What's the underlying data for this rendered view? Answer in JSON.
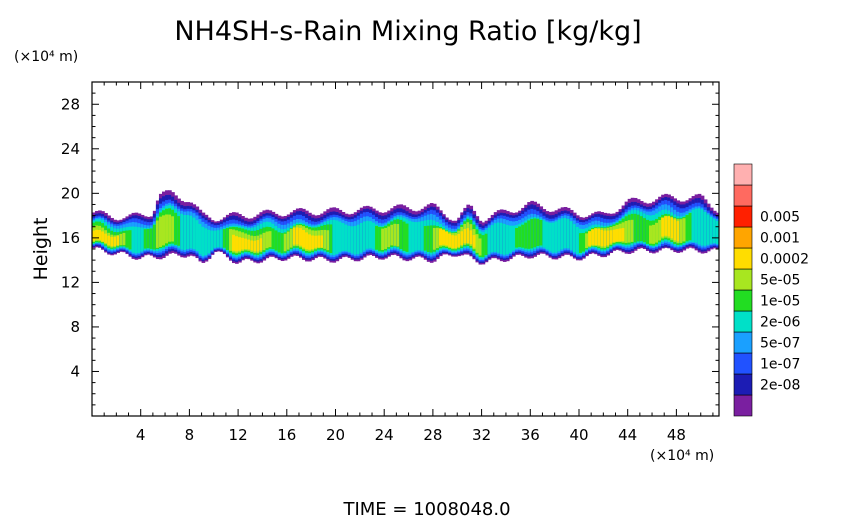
{
  "chart_data": {
    "type": "heatmap",
    "title": "NH4SH-s-Rain Mixing Ratio [kg/kg]",
    "ylabel": "Height",
    "y_unit": "(×10⁴ m)",
    "x_unit": "(×10⁴ m)",
    "xlim": [
      0,
      51.5
    ],
    "ylim": [
      0,
      30
    ],
    "x_ticks": [
      4,
      8,
      12,
      16,
      20,
      24,
      28,
      32,
      36,
      40,
      44,
      48
    ],
    "x_tick_labels": [
      "4",
      "8",
      "12",
      "16",
      "20",
      "24",
      "28",
      "32",
      "36",
      "40",
      "44",
      "48"
    ],
    "y_ticks": [
      4,
      8,
      12,
      16,
      20,
      24,
      28
    ],
    "y_tick_labels": [
      "4",
      "8",
      "12",
      "16",
      "20",
      "24",
      "28"
    ],
    "colorbar": {
      "levels": [
        "2e-08",
        "1e-07",
        "5e-07",
        "2e-06",
        "1e-05",
        "5e-05",
        "0.0002",
        "0.001",
        "0.005"
      ],
      "colors": [
        "#7a1fa0",
        "#1c1cb4",
        "#2152ff",
        "#1aa0ff",
        "#00e0c8",
        "#22dd22",
        "#a8e620",
        "#ffdd00",
        "#ffa500",
        "#ff2000",
        "#ff6a60",
        "#ffb0b0"
      ]
    },
    "layer": {
      "description_source": "mixing ratio band between heights ~14 and ~20",
      "top_profile": {
        "x": [
          0,
          3,
          5,
          5.5,
          6.5,
          8,
          9,
          10,
          12,
          16,
          20,
          24,
          28,
          30,
          31,
          32,
          36,
          40,
          42,
          44,
          47,
          50,
          51.5
        ],
        "y": [
          18.2,
          17.8,
          18.3,
          19.8,
          20.0,
          19.4,
          18.0,
          17.8,
          18.0,
          18.3,
          18.4,
          18.6,
          18.8,
          17.6,
          18.8,
          17.7,
          19.0,
          18.2,
          18.0,
          19.2,
          19.6,
          19.6,
          18.5
        ]
      },
      "bottom_profile": {
        "x": [
          0,
          4,
          8,
          9,
          10,
          12,
          16,
          20,
          24,
          28,
          30,
          32,
          36,
          40,
          44,
          48,
          51.5
        ],
        "y": [
          15.0,
          14.2,
          14.5,
          13.6,
          14.8,
          13.8,
          14.2,
          14.0,
          14.3,
          14.0,
          14.6,
          13.8,
          14.4,
          14.2,
          14.8,
          14.9,
          14.8
        ]
      },
      "core_height": 15.5
    },
    "time_label": "TIME",
    "time_value": "1008048.0"
  }
}
